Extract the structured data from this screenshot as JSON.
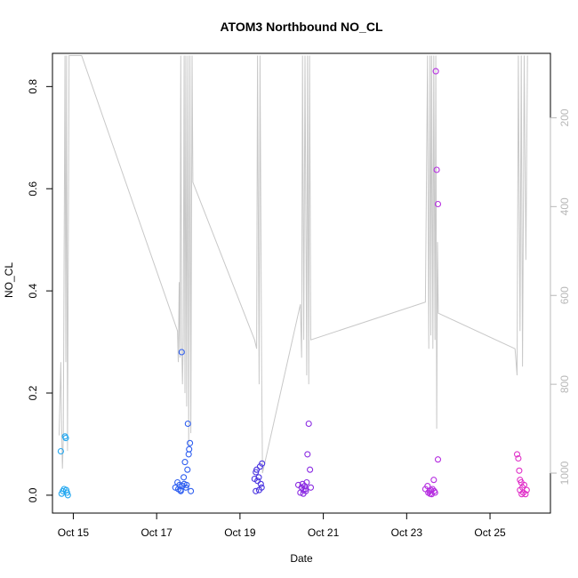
{
  "chart_data": {
    "type": "scatter",
    "title": "ATOM3 Northbound NO_CL",
    "xlabel": "Date",
    "ylabel": "NO_CL",
    "xlim": [
      14.5,
      26.45
    ],
    "ylim": [
      -0.035,
      0.865
    ],
    "x_ticks": [
      {
        "value": 15,
        "label": "Oct 15"
      },
      {
        "value": 17,
        "label": "Oct 17"
      },
      {
        "value": 19,
        "label": "Oct 19"
      },
      {
        "value": 21,
        "label": "Oct 21"
      },
      {
        "value": 23,
        "label": "Oct 23"
      },
      {
        "value": 25,
        "label": "Oct 25"
      }
    ],
    "y_ticks": [
      {
        "value": 0.0,
        "label": "0.0"
      },
      {
        "value": 0.2,
        "label": "0.2"
      },
      {
        "value": 0.4,
        "label": "0.4"
      },
      {
        "value": 0.6,
        "label": "0.6"
      },
      {
        "value": 0.8,
        "label": "0.8"
      }
    ],
    "y2_ticks": [
      {
        "value": 200,
        "label": "200"
      },
      {
        "value": 400,
        "label": "400"
      },
      {
        "value": 600,
        "label": "600"
      },
      {
        "value": 800,
        "label": "800"
      },
      {
        "value": 1000,
        "label": "1000"
      }
    ],
    "y2_lim_reversed": [
      55,
      1090
    ],
    "grid": false,
    "series": [
      {
        "color": "#22a7f0",
        "points": [
          [
            14.7,
            0.086
          ],
          [
            14.75,
            0.008
          ],
          [
            14.78,
            0.012
          ],
          [
            14.8,
            0.115
          ],
          [
            14.82,
            0.112
          ],
          [
            14.85,
            0.005
          ],
          [
            14.87,
            0.0
          ],
          [
            14.72,
            0.003
          ],
          [
            14.83,
            0.01
          ]
        ]
      },
      {
        "color": "#2f5ff0",
        "points": [
          [
            17.45,
            0.015
          ],
          [
            17.5,
            0.025
          ],
          [
            17.52,
            0.012
          ],
          [
            17.55,
            0.02
          ],
          [
            17.58,
            0.008
          ],
          [
            17.6,
            0.28
          ],
          [
            17.62,
            0.018
          ],
          [
            17.65,
            0.035
          ],
          [
            17.68,
            0.065
          ],
          [
            17.7,
            0.015
          ],
          [
            17.72,
            0.02
          ],
          [
            17.75,
            0.14
          ],
          [
            17.77,
            0.08
          ],
          [
            17.78,
            0.09
          ],
          [
            17.8,
            0.102
          ],
          [
            17.82,
            0.008
          ],
          [
            17.57,
            0.01
          ],
          [
            17.66,
            0.022
          ],
          [
            17.74,
            0.05
          ]
        ]
      },
      {
        "color": "#4a35e0",
        "points": [
          [
            19.35,
            0.032
          ],
          [
            19.38,
            0.045
          ],
          [
            19.4,
            0.05
          ],
          [
            19.42,
            0.028
          ],
          [
            19.45,
            0.035
          ],
          [
            19.48,
            0.056
          ],
          [
            19.5,
            0.022
          ],
          [
            19.53,
            0.062
          ],
          [
            19.38,
            0.008
          ],
          [
            19.46,
            0.01
          ],
          [
            19.52,
            0.015
          ]
        ]
      },
      {
        "color": "#8a2be2",
        "points": [
          [
            20.4,
            0.02
          ],
          [
            20.45,
            0.005
          ],
          [
            20.48,
            0.015
          ],
          [
            20.5,
            0.022
          ],
          [
            20.52,
            0.01
          ],
          [
            20.55,
            0.018
          ],
          [
            20.58,
            0.008
          ],
          [
            20.6,
            0.025
          ],
          [
            20.62,
            0.08
          ],
          [
            20.65,
            0.14
          ],
          [
            20.68,
            0.05
          ],
          [
            20.7,
            0.015
          ],
          [
            20.52,
            0.003
          ],
          [
            20.57,
            0.012
          ]
        ]
      },
      {
        "color": "#b52de0",
        "points": [
          [
            23.45,
            0.012
          ],
          [
            23.5,
            0.018
          ],
          [
            23.52,
            0.005
          ],
          [
            23.55,
            0.008
          ],
          [
            23.58,
            0.01
          ],
          [
            23.6,
            0.002
          ],
          [
            23.62,
            0.012
          ],
          [
            23.65,
            0.03
          ],
          [
            23.68,
            0.005
          ],
          [
            23.7,
            0.83
          ],
          [
            23.72,
            0.637
          ],
          [
            23.75,
            0.57
          ],
          [
            23.75,
            0.07
          ],
          [
            23.66,
            0.008
          ],
          [
            23.56,
            0.003
          ]
        ]
      },
      {
        "color": "#e030c8",
        "points": [
          [
            25.65,
            0.08
          ],
          [
            25.68,
            0.072
          ],
          [
            25.7,
            0.048
          ],
          [
            25.72,
            0.03
          ],
          [
            25.75,
            0.025
          ],
          [
            25.78,
            0.015
          ],
          [
            25.8,
            0.005
          ],
          [
            25.82,
            0.02
          ],
          [
            25.85,
            0.002
          ],
          [
            25.88,
            0.01
          ],
          [
            25.72,
            0.01
          ],
          [
            25.76,
            0.002
          ]
        ]
      }
    ],
    "alt_line": [
      [
        14.66,
        915
      ],
      [
        14.7,
        750
      ],
      [
        14.72,
        900
      ],
      [
        14.74,
        990
      ],
      [
        14.76,
        920
      ],
      [
        14.8,
        60
      ],
      [
        14.82,
        750
      ],
      [
        14.84,
        60
      ],
      [
        14.86,
        950
      ],
      [
        14.9,
        60
      ],
      [
        15.2,
        60
      ],
      [
        17.5,
        680
      ],
      [
        17.52,
        750
      ],
      [
        17.54,
        570
      ],
      [
        17.56,
        740
      ],
      [
        17.58,
        60
      ],
      [
        17.6,
        700
      ],
      [
        17.62,
        800
      ],
      [
        17.64,
        700
      ],
      [
        17.66,
        60
      ],
      [
        17.68,
        820
      ],
      [
        17.7,
        60
      ],
      [
        17.72,
        850
      ],
      [
        17.75,
        60
      ],
      [
        17.77,
        940
      ],
      [
        17.8,
        60
      ],
      [
        17.82,
        910
      ],
      [
        17.85,
        60
      ],
      [
        17.87,
        345
      ],
      [
        19.35,
        700
      ],
      [
        19.4,
        720
      ],
      [
        19.42,
        60
      ],
      [
        19.46,
        800
      ],
      [
        19.48,
        60
      ],
      [
        19.52,
        760
      ],
      [
        19.54,
        1000
      ],
      [
        20.45,
        620
      ],
      [
        20.48,
        740
      ],
      [
        20.5,
        60
      ],
      [
        20.53,
        700
      ],
      [
        20.56,
        60
      ],
      [
        20.6,
        780
      ],
      [
        20.62,
        60
      ],
      [
        20.65,
        800
      ],
      [
        20.67,
        60
      ],
      [
        20.7,
        700
      ],
      [
        23.45,
        615
      ],
      [
        23.5,
        60
      ],
      [
        23.53,
        720
      ],
      [
        23.56,
        60
      ],
      [
        23.58,
        690
      ],
      [
        23.6,
        60
      ],
      [
        23.63,
        720
      ],
      [
        23.65,
        60
      ],
      [
        23.68,
        700
      ],
      [
        23.7,
        60
      ],
      [
        23.72,
        900
      ],
      [
        23.74,
        480
      ],
      [
        23.76,
        640
      ],
      [
        25.6,
        720
      ],
      [
        25.65,
        780
      ],
      [
        25.68,
        60
      ],
      [
        25.72,
        680
      ],
      [
        25.75,
        60
      ],
      [
        25.78,
        760
      ],
      [
        25.82,
        60
      ],
      [
        25.86,
        520
      ],
      [
        25.9,
        60
      ]
    ]
  }
}
